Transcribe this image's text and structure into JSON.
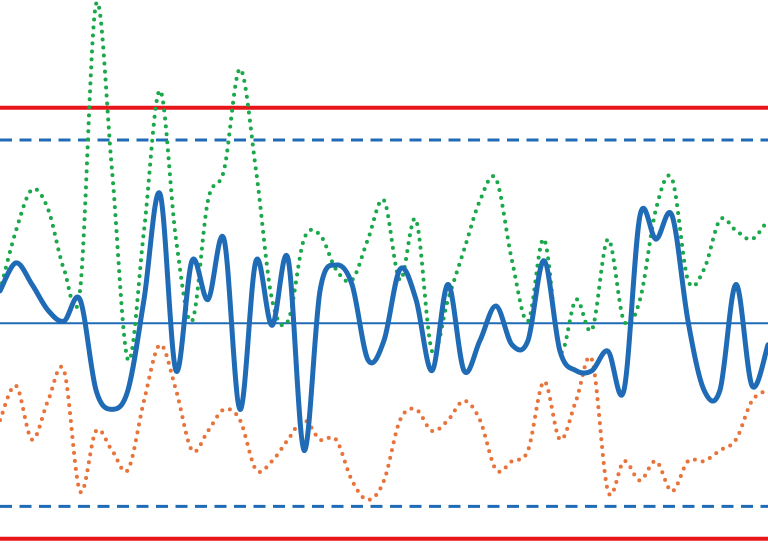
{
  "chart_data": {
    "type": "line",
    "ylim": [
      -10.2,
      15
    ],
    "smooth": true,
    "reference_lines": [
      {
        "value": 10,
        "color": "#e8161b",
        "style": "solid",
        "width": 4
      },
      {
        "value": 8.5,
        "color": "#1f6bb5",
        "style": "dashed",
        "width": 3
      },
      {
        "value": 0,
        "color": "#1f6bb5",
        "style": "solid",
        "width": 2
      },
      {
        "value": -8.5,
        "color": "#1f6bb5",
        "style": "dashed",
        "width": 3
      },
      {
        "value": -10,
        "color": "#e8161b",
        "style": "solid",
        "width": 4
      }
    ],
    "series": [
      {
        "color": "#1aa84a",
        "style": "dotted",
        "width": 4,
        "values": [
          1.5,
          4.3,
          6.2,
          5.3,
          2.5,
          1.5,
          14.8,
          7.1,
          -1.7,
          4.3,
          10.8,
          3.9,
          0.1,
          5.7,
          7.1,
          11.8,
          7.1,
          1.1,
          0.1,
          3.9,
          4.1,
          2.5,
          2.0,
          3.9,
          5.7,
          2.0,
          4.8,
          -1.3,
          1.1,
          3.4,
          5.7,
          6.7,
          2.9,
          0.1,
          3.9,
          -1.3,
          1.1,
          -0.3,
          3.9,
          0.1,
          1.1,
          5.3,
          6.7,
          2.0,
          2.5,
          4.8,
          4.3,
          3.9,
          4.8
        ]
      },
      {
        "color": "#e8743b",
        "style": "dotted",
        "width": 4,
        "values": [
          -4.5,
          -2.9,
          -5.4,
          -3.6,
          -2.2,
          -7.8,
          -5.0,
          -5.9,
          -6.8,
          -3.6,
          -1.0,
          -3.1,
          -5.9,
          -5.0,
          -4.0,
          -4.5,
          -6.8,
          -6.4,
          -5.4,
          -4.5,
          -5.4,
          -5.4,
          -7.3,
          -8.2,
          -7.3,
          -4.5,
          -4.0,
          -5.0,
          -4.5,
          -3.6,
          -4.5,
          -6.8,
          -6.4,
          -5.9,
          -2.7,
          -5.4,
          -3.6,
          -1.7,
          -7.8,
          -6.4,
          -7.3,
          -6.4,
          -7.8,
          -6.4,
          -6.4,
          -5.9,
          -5.4,
          -3.6,
          -3.1
        ]
      },
      {
        "color": "#1f6bb5",
        "style": "solid",
        "width": 5,
        "values": [
          1.5,
          2.8,
          1.8,
          0.6,
          0.1,
          1.1,
          -3.1,
          -4.0,
          -3.1,
          1.1,
          6.0,
          -2.2,
          2.9,
          1.1,
          3.9,
          -4.0,
          2.9,
          -0.1,
          3.0,
          -5.9,
          1.5,
          2.7,
          1.8,
          -1.7,
          -0.8,
          2.5,
          1.1,
          -2.2,
          1.8,
          -2.2,
          -0.8,
          0.8,
          -1.0,
          -0.8,
          2.9,
          -1.3,
          -2.2,
          -2.2,
          -1.3,
          -3.1,
          5.0,
          3.9,
          5.0,
          0.1,
          -3.1,
          -3.1,
          1.8,
          -2.9,
          -1.0
        ]
      }
    ]
  }
}
